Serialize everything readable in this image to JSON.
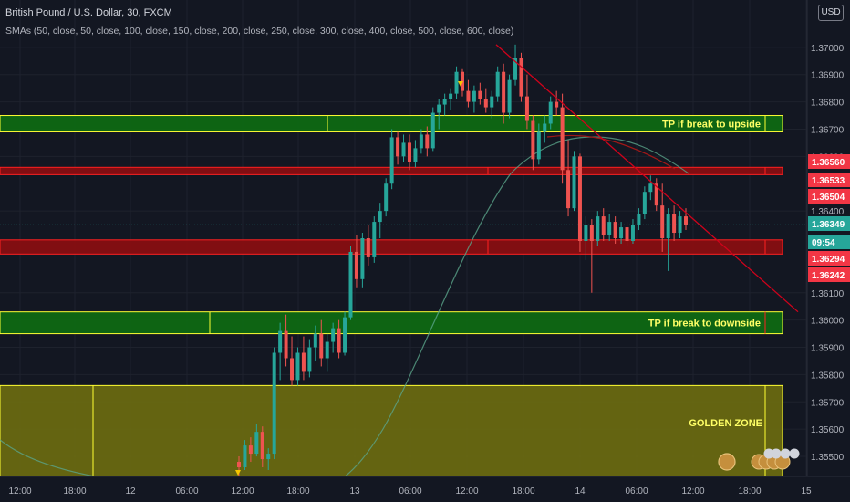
{
  "header": {
    "title": "British Pound / U.S. Dollar, 30, FXCM",
    "indicators": "SMAs (50, close, 50, close, 100, close, 150, close, 200, close, 250, close, 300, close, 400, close, 500, close, 600, close)",
    "currency": "USD"
  },
  "colors": {
    "background": "#131722",
    "bull": "#26a69a",
    "bear": "#ef5350",
    "green_zone": "#0e6b12",
    "red_zone": "#8b0e11",
    "golden_zone": "#6b6b10",
    "zone_border": "#ffff33",
    "red_border": "#ff2020",
    "trendline": "#d0021b"
  },
  "chart_data": {
    "type": "candlestick",
    "symbol": "GBPUSD",
    "timeframe": "30",
    "ylim": [
      1.3545,
      1.3715
    ],
    "y_ticks": [
      "1.37000",
      "1.36900",
      "1.36800",
      "1.36700",
      "1.36600",
      "1.36400",
      "1.36100",
      "1.36000",
      "1.35900",
      "1.35800",
      "1.35700",
      "1.35600",
      "1.35500"
    ],
    "x_ticks": [
      "12:00",
      "18:00",
      "12",
      "06:00",
      "12:00",
      "18:00",
      "13",
      "06:00",
      "12:00",
      "18:00",
      "14",
      "06:00",
      "12:00",
      "18:00",
      "15"
    ],
    "price_tags": [
      {
        "value": "1.36560",
        "color": "#f23645"
      },
      {
        "value": "1.36533",
        "color": "#f23645"
      },
      {
        "value": "1.36504",
        "color": "#f23645"
      },
      {
        "value": "1.36349",
        "color": "#26a69a"
      },
      {
        "value": "09:54",
        "color": "#26a69a"
      },
      {
        "value": "1.36294",
        "color": "#f23645"
      },
      {
        "value": "1.36242",
        "color": "#f23645"
      }
    ],
    "current_price": 1.36349,
    "zones": [
      {
        "label": "TP if break to upside",
        "color": "green",
        "from": 1.3669,
        "to": 1.3675
      },
      {
        "label": "",
        "color": "red",
        "from": 1.36533,
        "to": 1.3656
      },
      {
        "label": "",
        "color": "red",
        "from": 1.36242,
        "to": 1.36294
      },
      {
        "label": "TP if break to downside",
        "color": "green",
        "from": 1.3595,
        "to": 1.3603
      },
      {
        "label": "GOLDEN ZONE",
        "color": "gold",
        "from": 1.3545,
        "to": 1.3576
      }
    ],
    "trendline": {
      "from": [
        "13 12:30",
        1.3701
      ],
      "to": [
        "15 00:00",
        1.3603
      ]
    },
    "candles": [
      {
        "o": 1.3548,
        "h": 1.355,
        "l": 1.3543,
        "c": 1.3546
      },
      {
        "o": 1.3546,
        "h": 1.3556,
        "l": 1.3545,
        "c": 1.3554
      },
      {
        "o": 1.3554,
        "h": 1.3557,
        "l": 1.3548,
        "c": 1.3551
      },
      {
        "o": 1.3551,
        "h": 1.3562,
        "l": 1.355,
        "c": 1.3559
      },
      {
        "o": 1.3559,
        "h": 1.3561,
        "l": 1.3546,
        "c": 1.3549
      },
      {
        "o": 1.3549,
        "h": 1.3553,
        "l": 1.3545,
        "c": 1.3551
      },
      {
        "o": 1.3551,
        "h": 1.359,
        "l": 1.3549,
        "c": 1.3588
      },
      {
        "o": 1.3588,
        "h": 1.3599,
        "l": 1.3578,
        "c": 1.3596
      },
      {
        "o": 1.3596,
        "h": 1.3602,
        "l": 1.3583,
        "c": 1.3586
      },
      {
        "o": 1.3586,
        "h": 1.3594,
        "l": 1.3576,
        "c": 1.3578
      },
      {
        "o": 1.3578,
        "h": 1.359,
        "l": 1.3576,
        "c": 1.3588
      },
      {
        "o": 1.3588,
        "h": 1.3594,
        "l": 1.3578,
        "c": 1.3581
      },
      {
        "o": 1.3581,
        "h": 1.3593,
        "l": 1.3579,
        "c": 1.359
      },
      {
        "o": 1.359,
        "h": 1.3598,
        "l": 1.3585,
        "c": 1.3595
      },
      {
        "o": 1.3595,
        "h": 1.36,
        "l": 1.3583,
        "c": 1.3586
      },
      {
        "o": 1.3586,
        "h": 1.3595,
        "l": 1.3581,
        "c": 1.3592
      },
      {
        "o": 1.3592,
        "h": 1.3599,
        "l": 1.3588,
        "c": 1.3597
      },
      {
        "o": 1.3597,
        "h": 1.36,
        "l": 1.3586,
        "c": 1.3588
      },
      {
        "o": 1.3588,
        "h": 1.3603,
        "l": 1.3587,
        "c": 1.3601
      },
      {
        "o": 1.3601,
        "h": 1.3627,
        "l": 1.36,
        "c": 1.3625
      },
      {
        "o": 1.3625,
        "h": 1.3631,
        "l": 1.3612,
        "c": 1.3615
      },
      {
        "o": 1.3615,
        "h": 1.3632,
        "l": 1.3612,
        "c": 1.363
      },
      {
        "o": 1.363,
        "h": 1.3635,
        "l": 1.362,
        "c": 1.3623
      },
      {
        "o": 1.3623,
        "h": 1.3638,
        "l": 1.3621,
        "c": 1.3636
      },
      {
        "o": 1.3636,
        "h": 1.3643,
        "l": 1.363,
        "c": 1.364
      },
      {
        "o": 1.364,
        "h": 1.3652,
        "l": 1.3638,
        "c": 1.365
      },
      {
        "o": 1.365,
        "h": 1.367,
        "l": 1.3648,
        "c": 1.3667
      },
      {
        "o": 1.3667,
        "h": 1.3669,
        "l": 1.3657,
        "c": 1.366
      },
      {
        "o": 1.366,
        "h": 1.3668,
        "l": 1.3658,
        "c": 1.3665
      },
      {
        "o": 1.3665,
        "h": 1.3668,
        "l": 1.3655,
        "c": 1.3658
      },
      {
        "o": 1.3658,
        "h": 1.3666,
        "l": 1.3656,
        "c": 1.3663
      },
      {
        "o": 1.3663,
        "h": 1.367,
        "l": 1.3661,
        "c": 1.3668
      },
      {
        "o": 1.3668,
        "h": 1.3671,
        "l": 1.366,
        "c": 1.3663
      },
      {
        "o": 1.3663,
        "h": 1.3678,
        "l": 1.3662,
        "c": 1.3676
      },
      {
        "o": 1.3676,
        "h": 1.3681,
        "l": 1.367,
        "c": 1.3679
      },
      {
        "o": 1.3679,
        "h": 1.3683,
        "l": 1.3675,
        "c": 1.3681
      },
      {
        "o": 1.3681,
        "h": 1.3685,
        "l": 1.3677,
        "c": 1.3683
      },
      {
        "o": 1.3683,
        "h": 1.3693,
        "l": 1.3681,
        "c": 1.3691
      },
      {
        "o": 1.3691,
        "h": 1.3692,
        "l": 1.3682,
        "c": 1.3684
      },
      {
        "o": 1.3684,
        "h": 1.3688,
        "l": 1.3678,
        "c": 1.368
      },
      {
        "o": 1.368,
        "h": 1.3686,
        "l": 1.3676,
        "c": 1.3684
      },
      {
        "o": 1.3684,
        "h": 1.3687,
        "l": 1.3679,
        "c": 1.3681
      },
      {
        "o": 1.3681,
        "h": 1.3685,
        "l": 1.3676,
        "c": 1.3678
      },
      {
        "o": 1.3678,
        "h": 1.3684,
        "l": 1.3674,
        "c": 1.3682
      },
      {
        "o": 1.3682,
        "h": 1.3693,
        "l": 1.368,
        "c": 1.3691
      },
      {
        "o": 1.3691,
        "h": 1.3694,
        "l": 1.3672,
        "c": 1.3676
      },
      {
        "o": 1.3676,
        "h": 1.369,
        "l": 1.3674,
        "c": 1.3688
      },
      {
        "o": 1.3688,
        "h": 1.3701,
        "l": 1.3686,
        "c": 1.3696
      },
      {
        "o": 1.3696,
        "h": 1.3698,
        "l": 1.368,
        "c": 1.3682
      },
      {
        "o": 1.3682,
        "h": 1.369,
        "l": 1.367,
        "c": 1.3673
      },
      {
        "o": 1.3673,
        "h": 1.3675,
        "l": 1.3655,
        "c": 1.3659
      },
      {
        "o": 1.3659,
        "h": 1.3672,
        "l": 1.3657,
        "c": 1.3669
      },
      {
        "o": 1.3669,
        "h": 1.3675,
        "l": 1.3665,
        "c": 1.3672
      },
      {
        "o": 1.3672,
        "h": 1.3682,
        "l": 1.367,
        "c": 1.368
      },
      {
        "o": 1.368,
        "h": 1.3684,
        "l": 1.3675,
        "c": 1.3678
      },
      {
        "o": 1.3678,
        "h": 1.3683,
        "l": 1.365,
        "c": 1.3655
      },
      {
        "o": 1.3655,
        "h": 1.3666,
        "l": 1.3638,
        "c": 1.3641
      },
      {
        "o": 1.3641,
        "h": 1.3662,
        "l": 1.364,
        "c": 1.366
      },
      {
        "o": 1.366,
        "h": 1.3661,
        "l": 1.3625,
        "c": 1.3629
      },
      {
        "o": 1.3629,
        "h": 1.3638,
        "l": 1.3622,
        "c": 1.3635
      },
      {
        "o": 1.3635,
        "h": 1.3637,
        "l": 1.361,
        "c": 1.3629
      },
      {
        "o": 1.3629,
        "h": 1.364,
        "l": 1.3627,
        "c": 1.3638
      },
      {
        "o": 1.3638,
        "h": 1.3641,
        "l": 1.3629,
        "c": 1.3631
      },
      {
        "o": 1.3631,
        "h": 1.3639,
        "l": 1.3629,
        "c": 1.3636
      },
      {
        "o": 1.3636,
        "h": 1.3638,
        "l": 1.3628,
        "c": 1.363
      },
      {
        "o": 1.363,
        "h": 1.3636,
        "l": 1.3628,
        "c": 1.3634
      },
      {
        "o": 1.3634,
        "h": 1.3636,
        "l": 1.3627,
        "c": 1.3629
      },
      {
        "o": 1.3629,
        "h": 1.3637,
        "l": 1.3628,
        "c": 1.3635
      },
      {
        "o": 1.3635,
        "h": 1.3641,
        "l": 1.3633,
        "c": 1.3639
      },
      {
        "o": 1.3639,
        "h": 1.3649,
        "l": 1.3637,
        "c": 1.3647
      },
      {
        "o": 1.3647,
        "h": 1.3653,
        "l": 1.3644,
        "c": 1.365
      },
      {
        "o": 1.365,
        "h": 1.3652,
        "l": 1.364,
        "c": 1.3642
      },
      {
        "o": 1.3642,
        "h": 1.365,
        "l": 1.3625,
        "c": 1.363
      },
      {
        "o": 1.363,
        "h": 1.3641,
        "l": 1.3618,
        "c": 1.3639
      },
      {
        "o": 1.3639,
        "h": 1.3642,
        "l": 1.3629,
        "c": 1.3632
      },
      {
        "o": 1.3632,
        "h": 1.364,
        "l": 1.363,
        "c": 1.3638
      },
      {
        "o": 1.3638,
        "h": 1.3641,
        "l": 1.3633,
        "c": 1.3635
      }
    ]
  }
}
